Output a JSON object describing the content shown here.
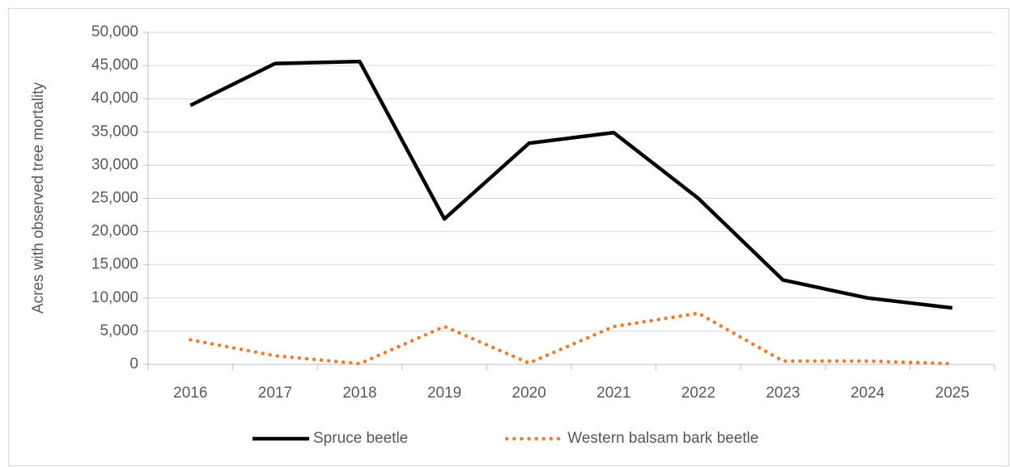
{
  "chart_data": {
    "type": "line",
    "y_axis_label": "Acres with observed tree mortality",
    "categories": [
      "2016",
      "2017",
      "2018",
      "2019",
      "2020",
      "2021",
      "2022",
      "2023",
      "2024",
      "2025"
    ],
    "series": [
      {
        "name": "Spruce beetle",
        "color": "#000000",
        "dash": "solid",
        "values": [
          39000,
          45300,
          45600,
          21900,
          33300,
          34900,
          25000,
          12700,
          10000,
          8500
        ]
      },
      {
        "name": "Western balsam bark beetle",
        "color": "#ed7d31",
        "dash": "dotted",
        "values": [
          3700,
          1300,
          100,
          5700,
          200,
          5700,
          7700,
          500,
          500,
          100
        ]
      }
    ],
    "ylim": [
      0,
      50000
    ],
    "yticks": [
      0,
      {
        "value": 5000,
        "label": "5,000"
      },
      {
        "value": 10000,
        "label": "10,000"
      },
      {
        "value": 15000,
        "label": "15,000"
      },
      {
        "value": 20000,
        "label": "20,000"
      },
      {
        "value": 25000,
        "label": "25,000"
      },
      {
        "value": 30000,
        "label": "30,000"
      },
      {
        "value": 35000,
        "label": "35,000"
      },
      {
        "value": 40000,
        "label": "40,000"
      },
      {
        "value": 45000,
        "label": "45,000"
      },
      {
        "value": 50000,
        "label": "50,000"
      }
    ],
    "grid": true,
    "legend": "bottom"
  }
}
